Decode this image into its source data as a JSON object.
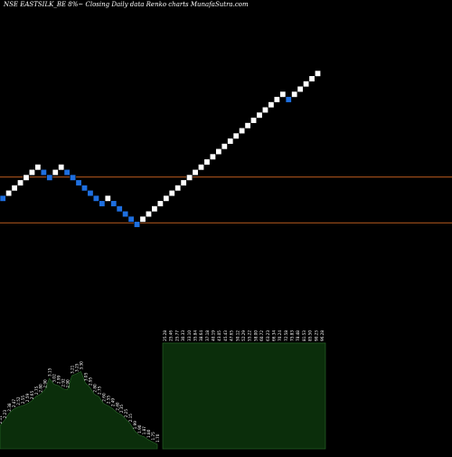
{
  "header": {
    "title": "NSE EASTSILK_BE 8%~  Closing Daily data  Renko  charts MunafaSutra.com"
  },
  "colors": {
    "background": "#000000",
    "up_brick": "#ffffff",
    "down_brick": "#1e6fe0",
    "reference_line": "#b85a1e",
    "volume_bar": "#0b2e0b",
    "volume_outline": "#2a6a2a",
    "label": "#ffffff"
  },
  "chart_data": [
    {
      "type": "renko",
      "title": "NSE EASTSILK_BE 8%~  Closing Daily data  Renko  charts MunafaSutra.com",
      "brick_pct": 8,
      "grid": false,
      "bricks": [
        {
          "dir": "down",
          "level": 0
        },
        {
          "dir": "up",
          "level": 1
        },
        {
          "dir": "up",
          "level": 2
        },
        {
          "dir": "up",
          "level": 3
        },
        {
          "dir": "up",
          "level": 4
        },
        {
          "dir": "up",
          "level": 5
        },
        {
          "dir": "up",
          "level": 6
        },
        {
          "dir": "down",
          "level": 5
        },
        {
          "dir": "down",
          "level": 4
        },
        {
          "dir": "up",
          "level": 5
        },
        {
          "dir": "up",
          "level": 6
        },
        {
          "dir": "down",
          "level": 5
        },
        {
          "dir": "down",
          "level": 4
        },
        {
          "dir": "down",
          "level": 3
        },
        {
          "dir": "down",
          "level": 2
        },
        {
          "dir": "down",
          "level": 1
        },
        {
          "dir": "down",
          "level": 0
        },
        {
          "dir": "down",
          "level": -1
        },
        {
          "dir": "up",
          "level": 0
        },
        {
          "dir": "down",
          "level": -1
        },
        {
          "dir": "down",
          "level": -2
        },
        {
          "dir": "down",
          "level": -3
        },
        {
          "dir": "down",
          "level": -4
        },
        {
          "dir": "down",
          "level": -5
        },
        {
          "dir": "up",
          "level": -4
        },
        {
          "dir": "up",
          "level": -3
        },
        {
          "dir": "up",
          "level": -2
        },
        {
          "dir": "up",
          "level": -1
        },
        {
          "dir": "up",
          "level": 0
        },
        {
          "dir": "up",
          "level": 1
        },
        {
          "dir": "up",
          "level": 2
        },
        {
          "dir": "up",
          "level": 3
        },
        {
          "dir": "up",
          "level": 4
        },
        {
          "dir": "up",
          "level": 5
        },
        {
          "dir": "up",
          "level": 6
        },
        {
          "dir": "up",
          "level": 7
        },
        {
          "dir": "up",
          "level": 8
        },
        {
          "dir": "up",
          "level": 9
        },
        {
          "dir": "up",
          "level": 10
        },
        {
          "dir": "up",
          "level": 11
        },
        {
          "dir": "up",
          "level": 12
        },
        {
          "dir": "up",
          "level": 13
        },
        {
          "dir": "up",
          "level": 14
        },
        {
          "dir": "up",
          "level": 15
        },
        {
          "dir": "up",
          "level": 16
        },
        {
          "dir": "up",
          "level": 17
        },
        {
          "dir": "up",
          "level": 18
        },
        {
          "dir": "up",
          "level": 19
        },
        {
          "dir": "up",
          "level": 20
        },
        {
          "dir": "down",
          "level": 19
        },
        {
          "dir": "up",
          "level": 20
        },
        {
          "dir": "up",
          "level": 21
        },
        {
          "dir": "up",
          "level": 22
        },
        {
          "dir": "up",
          "level": 23
        },
        {
          "dir": "up",
          "level": 24
        }
      ],
      "reference_lines": [
        {
          "level": 4.1
        },
        {
          "level": -4.7
        }
      ],
      "volume_labels": [
        "2.11",
        "2.23",
        "2.38",
        "2.47",
        "2.52",
        "2.55",
        "2.59",
        "2.65",
        "2.75",
        "2.80",
        "2.90",
        "3.15",
        "3.02",
        "2.99",
        "2.92",
        "2.90",
        "3.21",
        "3.25",
        "3.30",
        "3.05",
        "2.95",
        "2.80",
        "2.75",
        "2.60",
        "2.55",
        "2.49",
        "2.40",
        "2.35",
        "2.25",
        "2.15",
        "1.99",
        "1.90",
        "1.87",
        "1.80",
        "1.75",
        "1.70"
      ],
      "volume_values": [
        2.11,
        2.23,
        2.38,
        2.47,
        2.52,
        2.55,
        2.59,
        2.65,
        2.75,
        2.8,
        2.9,
        3.15,
        3.02,
        2.99,
        2.92,
        2.9,
        3.21,
        3.25,
        3.3,
        3.05,
        2.95,
        2.8,
        2.75,
        2.6,
        2.55,
        2.49,
        2.4,
        2.35,
        2.25,
        2.15,
        1.99,
        1.9,
        1.87,
        1.8,
        1.75,
        1.7
      ],
      "price_labels": [
        "25.28",
        "25.46",
        "25.77",
        "30.33",
        "33.10",
        "35.84",
        "38.64",
        "37.18",
        "40.19",
        "43.05",
        "45.43",
        "47.65",
        "50.12",
        "52.29",
        "55.22",
        "58.00",
        "60.72",
        "63.23",
        "66.34",
        "70.24",
        "72.58",
        "75.83",
        "78.48",
        "81.53",
        "85.50",
        "90.23",
        "96.28"
      ]
    }
  ]
}
